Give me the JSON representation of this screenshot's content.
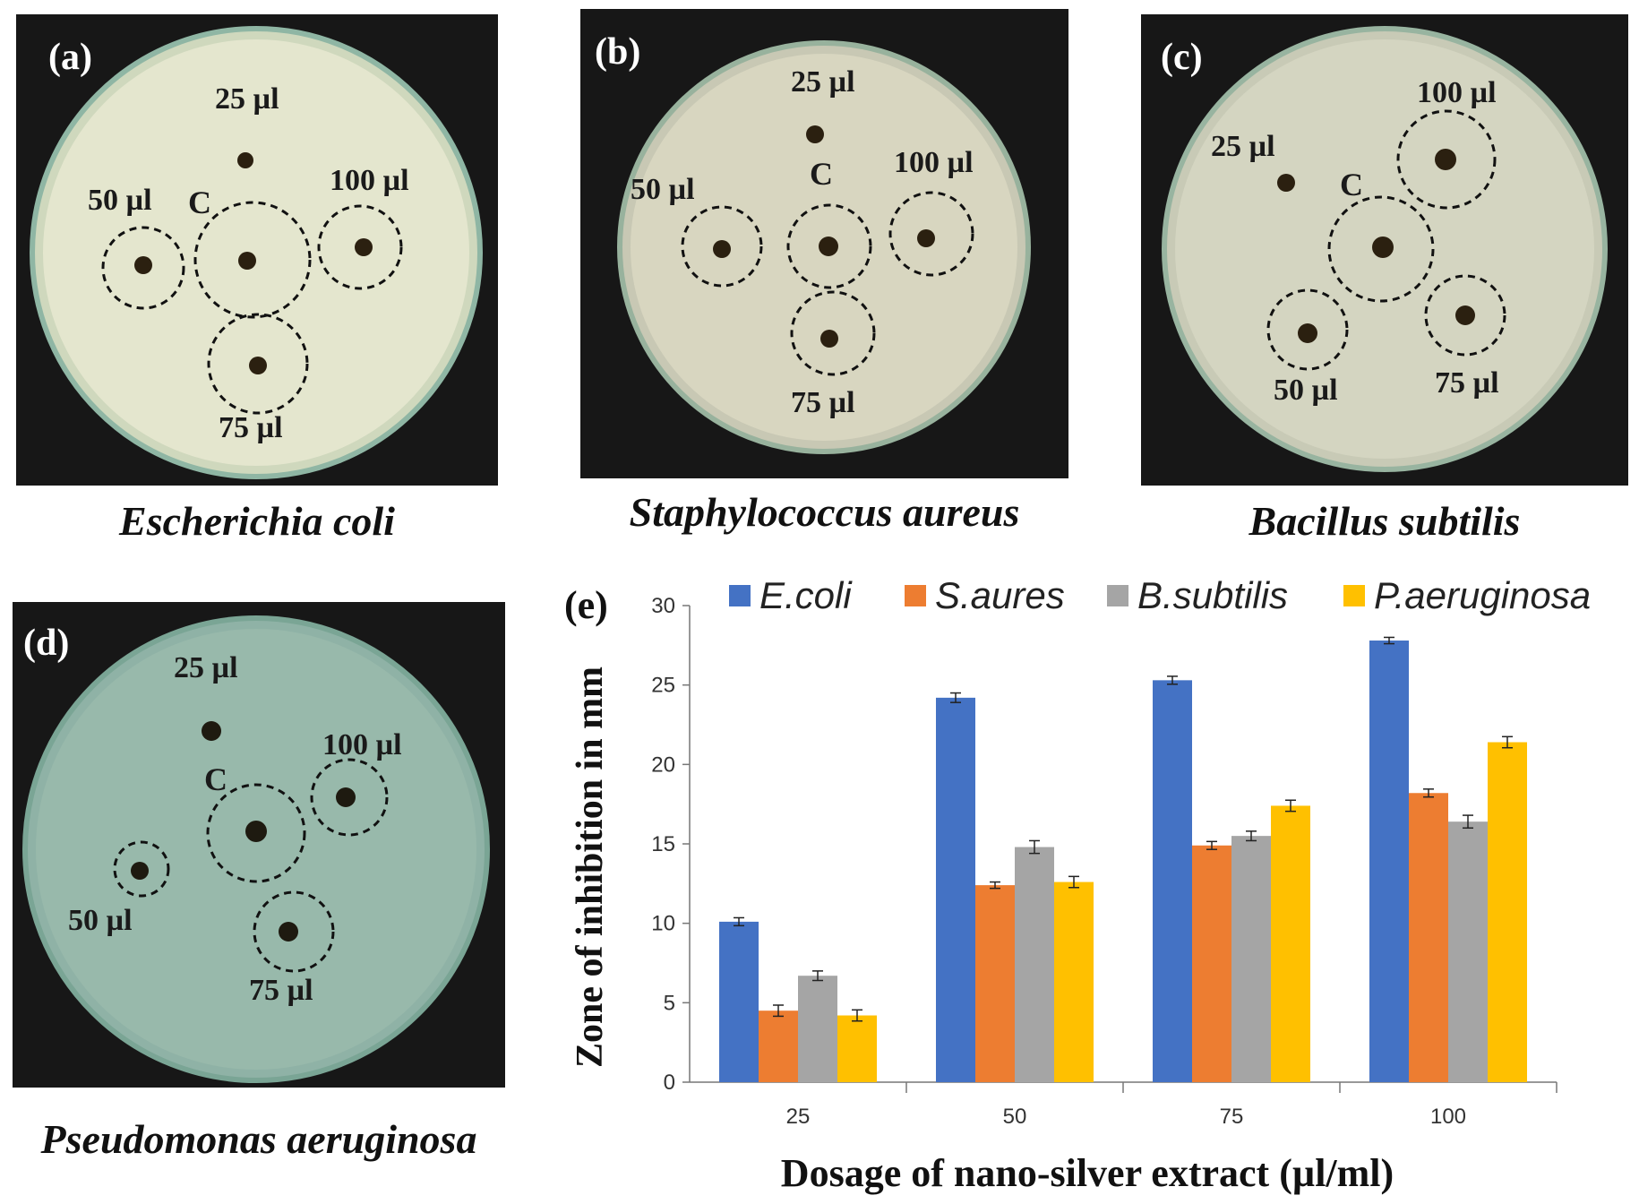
{
  "panels": [
    {
      "id": "a",
      "label": "(a)",
      "caption": "Escherichia coli",
      "control": "C",
      "wells": [
        "25 µl",
        "50 µl",
        "75 µl",
        "100 µl"
      ]
    },
    {
      "id": "b",
      "label": "(b)",
      "caption": "Staphylococcus aureus",
      "control": "C",
      "wells": [
        "25 µl",
        "50 µl",
        "75 µl",
        "100 µl"
      ]
    },
    {
      "id": "c",
      "label": "(c)",
      "caption": "Bacillus subtilis",
      "control": "C",
      "wells": [
        "25 µl",
        "50 µl",
        "75 µl",
        "100 µl"
      ]
    },
    {
      "id": "d",
      "label": "(d)",
      "caption": "Pseudomonas aeruginosa",
      "control": "C",
      "wells": [
        "25 µl",
        "50 µl",
        "75 µl",
        "100 µl"
      ]
    }
  ],
  "chart_data": {
    "type": "bar",
    "panel_label": "(e)",
    "categories": [
      "25",
      "50",
      "75",
      "100"
    ],
    "series": [
      {
        "name": "E.coli",
        "color": "#4472C4",
        "values": [
          10.1,
          24.2,
          25.3,
          27.8
        ],
        "errors": [
          0.25,
          0.3,
          0.25,
          0.2
        ]
      },
      {
        "name": "S.aures",
        "color": "#ED7D31",
        "values": [
          4.5,
          12.4,
          14.9,
          18.2
        ],
        "errors": [
          0.35,
          0.2,
          0.25,
          0.25
        ]
      },
      {
        "name": "B.subtilis",
        "color": "#A5A5A5",
        "values": [
          6.7,
          14.8,
          15.5,
          16.4
        ],
        "errors": [
          0.3,
          0.4,
          0.3,
          0.4
        ]
      },
      {
        "name": "P.aeruginosa",
        "color": "#FFC000",
        "values": [
          4.2,
          12.6,
          17.4,
          21.4
        ],
        "errors": [
          0.35,
          0.35,
          0.35,
          0.35
        ]
      }
    ],
    "xlabel": "Dosage of nano-silver extract (µl/ml)",
    "ylabel": "Zone of inhibition in mm",
    "ylim": [
      0,
      30
    ],
    "yticks": [
      0,
      5,
      10,
      15,
      20,
      25,
      30
    ],
    "legend": "top"
  }
}
